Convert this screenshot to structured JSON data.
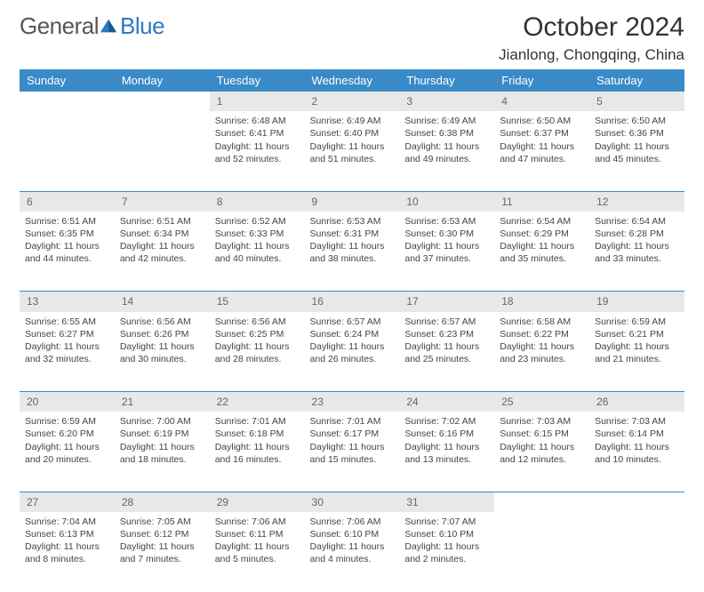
{
  "logo": {
    "general": "General",
    "blue": "Blue"
  },
  "title": "October 2024",
  "location": "Jianlong, Chongqing, China",
  "theme": {
    "header_bg": "#3a8ac8",
    "header_fg": "#ffffff",
    "daynum_bg": "#e8e8e8",
    "row_divider": "#3a8ac8",
    "body_bg": "#ffffff",
    "text_color": "#444444"
  },
  "day_headers": [
    "Sunday",
    "Monday",
    "Tuesday",
    "Wednesday",
    "Thursday",
    "Friday",
    "Saturday"
  ],
  "weeks": [
    {
      "nums": [
        "",
        "",
        "1",
        "2",
        "3",
        "4",
        "5"
      ],
      "cells": [
        null,
        null,
        {
          "sunrise": "6:48 AM",
          "sunset": "6:41 PM",
          "daylight": "11 hours and 52 minutes."
        },
        {
          "sunrise": "6:49 AM",
          "sunset": "6:40 PM",
          "daylight": "11 hours and 51 minutes."
        },
        {
          "sunrise": "6:49 AM",
          "sunset": "6:38 PM",
          "daylight": "11 hours and 49 minutes."
        },
        {
          "sunrise": "6:50 AM",
          "sunset": "6:37 PM",
          "daylight": "11 hours and 47 minutes."
        },
        {
          "sunrise": "6:50 AM",
          "sunset": "6:36 PM",
          "daylight": "11 hours and 45 minutes."
        }
      ]
    },
    {
      "nums": [
        "6",
        "7",
        "8",
        "9",
        "10",
        "11",
        "12"
      ],
      "cells": [
        {
          "sunrise": "6:51 AM",
          "sunset": "6:35 PM",
          "daylight": "11 hours and 44 minutes."
        },
        {
          "sunrise": "6:51 AM",
          "sunset": "6:34 PM",
          "daylight": "11 hours and 42 minutes."
        },
        {
          "sunrise": "6:52 AM",
          "sunset": "6:33 PM",
          "daylight": "11 hours and 40 minutes."
        },
        {
          "sunrise": "6:53 AM",
          "sunset": "6:31 PM",
          "daylight": "11 hours and 38 minutes."
        },
        {
          "sunrise": "6:53 AM",
          "sunset": "6:30 PM",
          "daylight": "11 hours and 37 minutes."
        },
        {
          "sunrise": "6:54 AM",
          "sunset": "6:29 PM",
          "daylight": "11 hours and 35 minutes."
        },
        {
          "sunrise": "6:54 AM",
          "sunset": "6:28 PM",
          "daylight": "11 hours and 33 minutes."
        }
      ]
    },
    {
      "nums": [
        "13",
        "14",
        "15",
        "16",
        "17",
        "18",
        "19"
      ],
      "cells": [
        {
          "sunrise": "6:55 AM",
          "sunset": "6:27 PM",
          "daylight": "11 hours and 32 minutes."
        },
        {
          "sunrise": "6:56 AM",
          "sunset": "6:26 PM",
          "daylight": "11 hours and 30 minutes."
        },
        {
          "sunrise": "6:56 AM",
          "sunset": "6:25 PM",
          "daylight": "11 hours and 28 minutes."
        },
        {
          "sunrise": "6:57 AM",
          "sunset": "6:24 PM",
          "daylight": "11 hours and 26 minutes."
        },
        {
          "sunrise": "6:57 AM",
          "sunset": "6:23 PM",
          "daylight": "11 hours and 25 minutes."
        },
        {
          "sunrise": "6:58 AM",
          "sunset": "6:22 PM",
          "daylight": "11 hours and 23 minutes."
        },
        {
          "sunrise": "6:59 AM",
          "sunset": "6:21 PM",
          "daylight": "11 hours and 21 minutes."
        }
      ]
    },
    {
      "nums": [
        "20",
        "21",
        "22",
        "23",
        "24",
        "25",
        "26"
      ],
      "cells": [
        {
          "sunrise": "6:59 AM",
          "sunset": "6:20 PM",
          "daylight": "11 hours and 20 minutes."
        },
        {
          "sunrise": "7:00 AM",
          "sunset": "6:19 PM",
          "daylight": "11 hours and 18 minutes."
        },
        {
          "sunrise": "7:01 AM",
          "sunset": "6:18 PM",
          "daylight": "11 hours and 16 minutes."
        },
        {
          "sunrise": "7:01 AM",
          "sunset": "6:17 PM",
          "daylight": "11 hours and 15 minutes."
        },
        {
          "sunrise": "7:02 AM",
          "sunset": "6:16 PM",
          "daylight": "11 hours and 13 minutes."
        },
        {
          "sunrise": "7:03 AM",
          "sunset": "6:15 PM",
          "daylight": "11 hours and 12 minutes."
        },
        {
          "sunrise": "7:03 AM",
          "sunset": "6:14 PM",
          "daylight": "11 hours and 10 minutes."
        }
      ]
    },
    {
      "nums": [
        "27",
        "28",
        "29",
        "30",
        "31",
        "",
        ""
      ],
      "cells": [
        {
          "sunrise": "7:04 AM",
          "sunset": "6:13 PM",
          "daylight": "11 hours and 8 minutes."
        },
        {
          "sunrise": "7:05 AM",
          "sunset": "6:12 PM",
          "daylight": "11 hours and 7 minutes."
        },
        {
          "sunrise": "7:06 AM",
          "sunset": "6:11 PM",
          "daylight": "11 hours and 5 minutes."
        },
        {
          "sunrise": "7:06 AM",
          "sunset": "6:10 PM",
          "daylight": "11 hours and 4 minutes."
        },
        {
          "sunrise": "7:07 AM",
          "sunset": "6:10 PM",
          "daylight": "11 hours and 2 minutes."
        },
        null,
        null
      ]
    }
  ]
}
